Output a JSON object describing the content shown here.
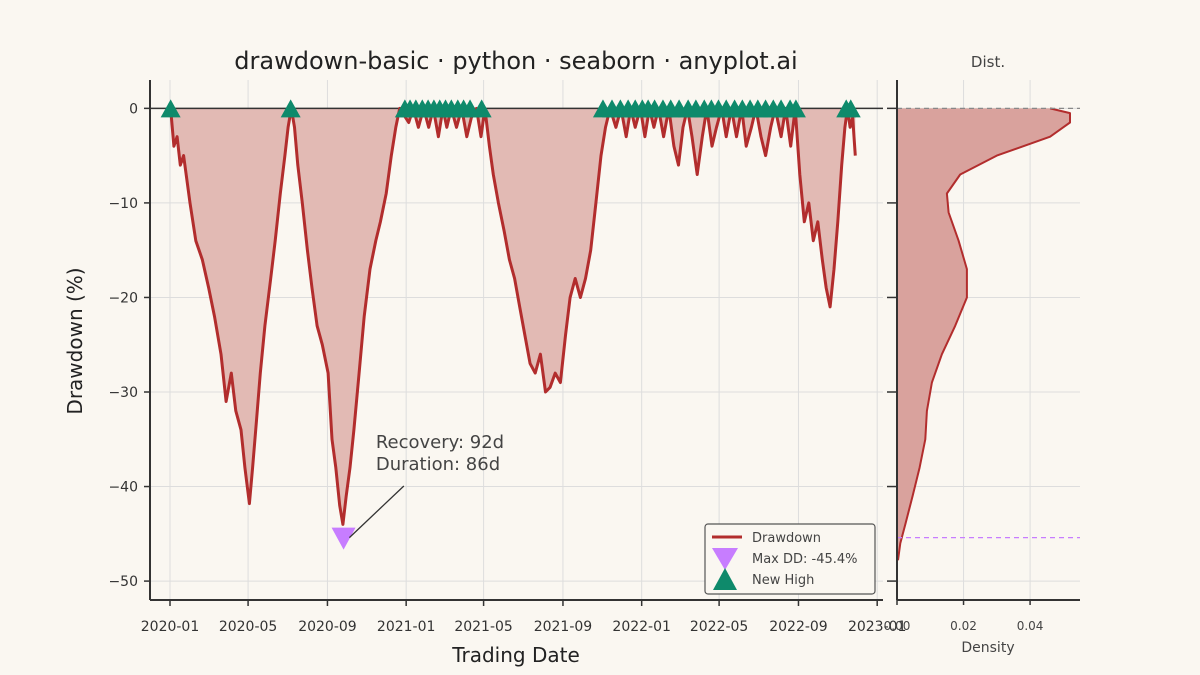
{
  "title": "drawdown-basic · python · seaborn · anyplot.ai",
  "colors": {
    "background": "#FAF7F1",
    "line": "#B22D2D",
    "fill": "#E2BAB4",
    "max_dd": "#C77DFF",
    "new_high": "#0E8A6B",
    "kde_fill": "#D9A29D",
    "axis": "#333333",
    "grid": "#DDDDDD"
  },
  "chart_data": [
    {
      "type": "area",
      "title": "drawdown-basic · python · seaborn · anyplot.ai",
      "xlabel": "Trading Date",
      "ylabel": "Drawdown (%)",
      "xlim": [
        "2019-12-01",
        "2023-01-10"
      ],
      "ylim": [
        -52,
        3
      ],
      "xticks": [
        "2020-01",
        "2020-05",
        "2020-09",
        "2021-01",
        "2021-05",
        "2021-09",
        "2022-01",
        "2022-05",
        "2022-09",
        "2023-01"
      ],
      "yticks": [
        0,
        -10,
        -20,
        -30,
        -40,
        -50
      ],
      "grid": true,
      "legend_position": "bottom-right",
      "series": [
        {
          "name": "Drawdown",
          "points": [
            [
              "2020-01-02",
              0
            ],
            [
              "2020-01-07",
              -4
            ],
            [
              "2020-01-12",
              -3
            ],
            [
              "2020-01-17",
              -6
            ],
            [
              "2020-01-22",
              -5
            ],
            [
              "2020-02-01",
              -10
            ],
            [
              "2020-02-10",
              -14
            ],
            [
              "2020-02-20",
              -16
            ],
            [
              "2020-03-01",
              -19
            ],
            [
              "2020-03-10",
              -22
            ],
            [
              "2020-03-20",
              -26
            ],
            [
              "2020-03-28",
              -31
            ],
            [
              "2020-04-05",
              -28
            ],
            [
              "2020-04-12",
              -32
            ],
            [
              "2020-04-20",
              -34
            ],
            [
              "2020-04-26",
              -38
            ],
            [
              "2020-05-03",
              -41.8
            ],
            [
              "2020-05-08",
              -38
            ],
            [
              "2020-05-14",
              -33
            ],
            [
              "2020-05-20",
              -28
            ],
            [
              "2020-05-27",
              -23
            ],
            [
              "2020-06-05",
              -18
            ],
            [
              "2020-06-12",
              -14
            ],
            [
              "2020-06-20",
              -9
            ],
            [
              "2020-06-27",
              -5
            ],
            [
              "2020-07-02",
              -2
            ],
            [
              "2020-07-07",
              0
            ],
            [
              "2020-07-12",
              -2
            ],
            [
              "2020-07-17",
              -6
            ],
            [
              "2020-07-24",
              -10
            ],
            [
              "2020-08-01",
              -15
            ],
            [
              "2020-08-08",
              -19
            ],
            [
              "2020-08-16",
              -23
            ],
            [
              "2020-08-24",
              -25
            ],
            [
              "2020-09-02",
              -28
            ],
            [
              "2020-09-08",
              -35
            ],
            [
              "2020-09-14",
              -38
            ],
            [
              "2020-09-20",
              -42
            ],
            [
              "2020-09-25",
              -44
            ],
            [
              "2020-09-30",
              -41
            ],
            [
              "2020-10-06",
              -38
            ],
            [
              "2020-10-12",
              -34
            ],
            [
              "2020-10-20",
              -28
            ],
            [
              "2020-10-28",
              -22
            ],
            [
              "2020-11-06",
              -17
            ],
            [
              "2020-11-15",
              -14
            ],
            [
              "2020-11-22",
              -12
            ],
            [
              "2020-12-01",
              -9
            ],
            [
              "2020-12-09",
              -5
            ],
            [
              "2020-12-16",
              -2
            ],
            [
              "2020-12-22",
              0
            ],
            [
              "2021-01-05",
              -1.5
            ],
            [
              "2021-01-12",
              0
            ],
            [
              "2021-01-20",
              -2
            ],
            [
              "2021-01-28",
              0
            ],
            [
              "2021-02-05",
              -2
            ],
            [
              "2021-02-12",
              0
            ],
            [
              "2021-02-20",
              -3
            ],
            [
              "2021-02-27",
              0
            ],
            [
              "2021-03-05",
              -2
            ],
            [
              "2021-03-12",
              0
            ],
            [
              "2021-03-20",
              -2
            ],
            [
              "2021-03-28",
              0
            ],
            [
              "2021-04-05",
              -3
            ],
            [
              "2021-04-12",
              -1
            ],
            [
              "2021-04-20",
              0
            ],
            [
              "2021-04-27",
              -3
            ],
            [
              "2021-05-03",
              0
            ],
            [
              "2021-05-10",
              -4
            ],
            [
              "2021-05-16",
              -7
            ],
            [
              "2021-05-24",
              -10
            ],
            [
              "2021-06-02",
              -13
            ],
            [
              "2021-06-10",
              -16
            ],
            [
              "2021-06-18",
              -18
            ],
            [
              "2021-06-26",
              -21
            ],
            [
              "2021-07-04",
              -24
            ],
            [
              "2021-07-12",
              -27
            ],
            [
              "2021-07-20",
              -28
            ],
            [
              "2021-07-28",
              -26
            ],
            [
              "2021-08-05",
              -30
            ],
            [
              "2021-08-12",
              -29.5
            ],
            [
              "2021-08-20",
              -28
            ],
            [
              "2021-08-28",
              -29
            ],
            [
              "2021-09-05",
              -24
            ],
            [
              "2021-09-12",
              -20
            ],
            [
              "2021-09-20",
              -18
            ],
            [
              "2021-09-28",
              -20
            ],
            [
              "2021-10-06",
              -18
            ],
            [
              "2021-10-14",
              -15
            ],
            [
              "2021-10-22",
              -10
            ],
            [
              "2021-10-30",
              -5
            ],
            [
              "2021-11-06",
              -2
            ],
            [
              "2021-11-13",
              0
            ],
            [
              "2021-11-22",
              -2
            ],
            [
              "2021-11-30",
              0
            ],
            [
              "2021-12-08",
              -3
            ],
            [
              "2021-12-15",
              0
            ],
            [
              "2021-12-22",
              -2
            ],
            [
              "2021-12-30",
              0
            ],
            [
              "2022-01-06",
              -3
            ],
            [
              "2022-01-13",
              0
            ],
            [
              "2022-01-20",
              -2
            ],
            [
              "2022-01-27",
              0
            ],
            [
              "2022-02-04",
              -3
            ],
            [
              "2022-02-12",
              0
            ],
            [
              "2022-02-20",
              -4
            ],
            [
              "2022-02-27",
              -6
            ],
            [
              "2022-03-06",
              -2
            ],
            [
              "2022-03-13",
              0
            ],
            [
              "2022-03-20",
              -3
            ],
            [
              "2022-03-28",
              -7
            ],
            [
              "2022-04-05",
              -3
            ],
            [
              "2022-04-12",
              0
            ],
            [
              "2022-04-20",
              -4
            ],
            [
              "2022-04-27",
              -2
            ],
            [
              "2022-05-05",
              0
            ],
            [
              "2022-05-12",
              -3
            ],
            [
              "2022-05-20",
              0
            ],
            [
              "2022-05-28",
              -3
            ],
            [
              "2022-06-05",
              0
            ],
            [
              "2022-06-12",
              -4
            ],
            [
              "2022-06-20",
              -2
            ],
            [
              "2022-06-27",
              0
            ],
            [
              "2022-07-05",
              -3
            ],
            [
              "2022-07-12",
              -5
            ],
            [
              "2022-07-20",
              -2
            ],
            [
              "2022-07-27",
              0
            ],
            [
              "2022-08-05",
              -3
            ],
            [
              "2022-08-12",
              0
            ],
            [
              "2022-08-20",
              -4
            ],
            [
              "2022-08-27",
              0
            ],
            [
              "2022-09-03",
              -7
            ],
            [
              "2022-09-10",
              -12
            ],
            [
              "2022-09-17",
              -10
            ],
            [
              "2022-09-24",
              -14
            ],
            [
              "2022-10-01",
              -12
            ],
            [
              "2022-10-08",
              -16
            ],
            [
              "2022-10-14",
              -19
            ],
            [
              "2022-10-20",
              -21
            ],
            [
              "2022-10-26",
              -17
            ],
            [
              "2022-11-01",
              -12
            ],
            [
              "2022-11-07",
              -6
            ],
            [
              "2022-11-12",
              -2
            ],
            [
              "2022-11-16",
              0
            ],
            [
              "2022-11-20",
              -2
            ],
            [
              "2022-11-24",
              -1
            ],
            [
              "2022-11-28",
              -5
            ]
          ]
        },
        {
          "name": "Max DD: -45.4%",
          "marker": "triangle-down",
          "points": [
            [
              "2020-09-26",
              -45.4
            ]
          ]
        },
        {
          "name": "New High",
          "marker": "triangle-up",
          "points": [
            [
              "2020-01-02",
              0
            ],
            [
              "2020-07-06",
              0
            ],
            [
              "2020-12-30",
              0
            ],
            [
              "2021-01-07",
              0
            ],
            [
              "2021-01-16",
              0
            ],
            [
              "2021-01-26",
              0
            ],
            [
              "2021-02-04",
              0
            ],
            [
              "2021-02-13",
              0
            ],
            [
              "2021-02-22",
              0
            ],
            [
              "2021-03-03",
              0
            ],
            [
              "2021-03-12",
              0
            ],
            [
              "2021-03-22",
              0
            ],
            [
              "2021-03-31",
              0
            ],
            [
              "2021-04-10",
              0
            ],
            [
              "2021-04-28",
              0
            ],
            [
              "2021-11-02",
              0
            ],
            [
              "2021-11-16",
              0
            ],
            [
              "2021-11-29",
              0
            ],
            [
              "2021-12-11",
              0
            ],
            [
              "2021-12-22",
              0
            ],
            [
              "2022-01-02",
              0
            ],
            [
              "2022-01-11",
              0
            ],
            [
              "2022-01-21",
              0
            ],
            [
              "2022-02-03",
              0
            ],
            [
              "2022-02-15",
              0
            ],
            [
              "2022-02-28",
              0
            ],
            [
              "2022-03-14",
              0
            ],
            [
              "2022-03-26",
              0
            ],
            [
              "2022-04-08",
              0
            ],
            [
              "2022-04-19",
              0
            ],
            [
              "2022-04-30",
              0
            ],
            [
              "2022-05-12",
              0
            ],
            [
              "2022-05-25",
              0
            ],
            [
              "2022-06-06",
              0
            ],
            [
              "2022-06-18",
              0
            ],
            [
              "2022-06-30",
              0
            ],
            [
              "2022-07-12",
              0
            ],
            [
              "2022-07-24",
              0
            ],
            [
              "2022-08-05",
              0
            ],
            [
              "2022-08-19",
              0
            ],
            [
              "2022-08-28",
              0
            ],
            [
              "2022-11-14",
              0
            ],
            [
              "2022-11-21",
              0
            ]
          ]
        }
      ],
      "annotation": {
        "lines": [
          "Recovery: 92d",
          "Duration: 86d"
        ],
        "anchor": [
          "2020-10-05",
          -45.4
        ],
        "text_at": [
          "2020-11-15",
          -35.5
        ]
      },
      "legend": [
        "Drawdown",
        "Max DD: -45.4%",
        "New High"
      ]
    },
    {
      "type": "area",
      "title": "Dist.",
      "xlabel": "Density",
      "ylabel": "",
      "xlim": [
        0,
        0.055
      ],
      "xticks": [
        0,
        0.02,
        0.04
      ],
      "xtick_labels": [
        "0.00",
        "0.02",
        "0.04"
      ],
      "reference_lines": [
        0,
        -45.4
      ],
      "kde": [
        [
          0,
          0.046
        ],
        [
          -0.5,
          0.052
        ],
        [
          -1.5,
          0.052
        ],
        [
          -3,
          0.046
        ],
        [
          -5,
          0.03
        ],
        [
          -7,
          0.019
        ],
        [
          -9,
          0.015
        ],
        [
          -11,
          0.0155
        ],
        [
          -14,
          0.0185
        ],
        [
          -17,
          0.021
        ],
        [
          -20,
          0.021
        ],
        [
          -23,
          0.0175
        ],
        [
          -26,
          0.0135
        ],
        [
          -29,
          0.0105
        ],
        [
          -32,
          0.009
        ],
        [
          -35,
          0.0085
        ],
        [
          -38,
          0.0068
        ],
        [
          -41,
          0.0047
        ],
        [
          -44,
          0.0025
        ],
        [
          -46,
          0.001
        ],
        [
          -47.8,
          0.0003
        ]
      ]
    }
  ]
}
